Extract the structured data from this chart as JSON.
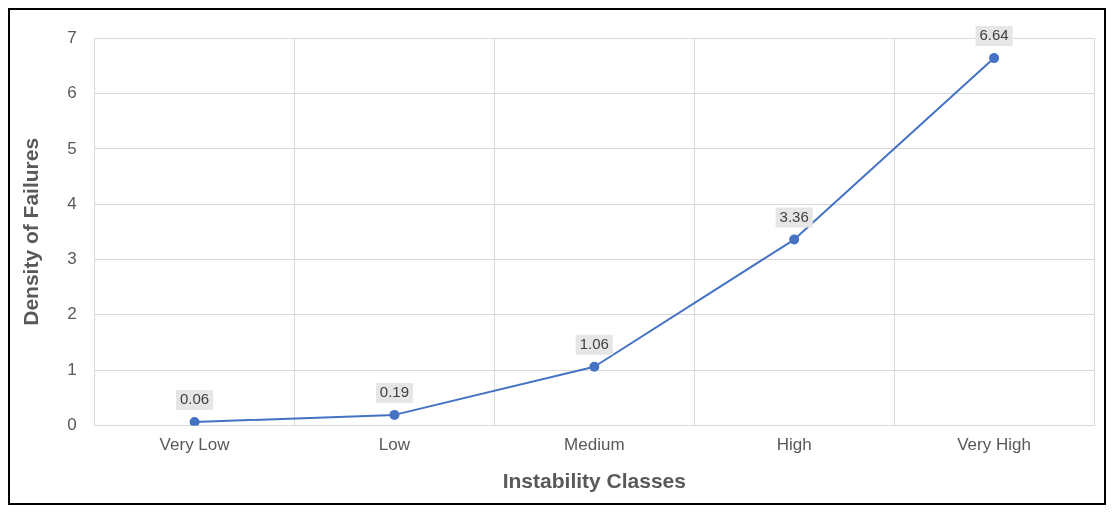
{
  "chart_data": {
    "type": "line",
    "xlabel": "Instability Classes",
    "ylabel": "Density of Failures",
    "categories": [
      "Very Low",
      "Low",
      "Medium",
      "High",
      "Very High"
    ],
    "series": [
      {
        "color": "#4472c4",
        "values": [
          0.06,
          0.19,
          1.06,
          3.36,
          6.64
        ]
      }
    ],
    "ylim": [
      0,
      7
    ],
    "yticks": [
      0,
      1,
      2,
      3,
      4,
      5,
      6,
      7
    ],
    "grid": true,
    "legend": false,
    "marker": "circle",
    "line_style": "solid",
    "data_labels": true
  }
}
